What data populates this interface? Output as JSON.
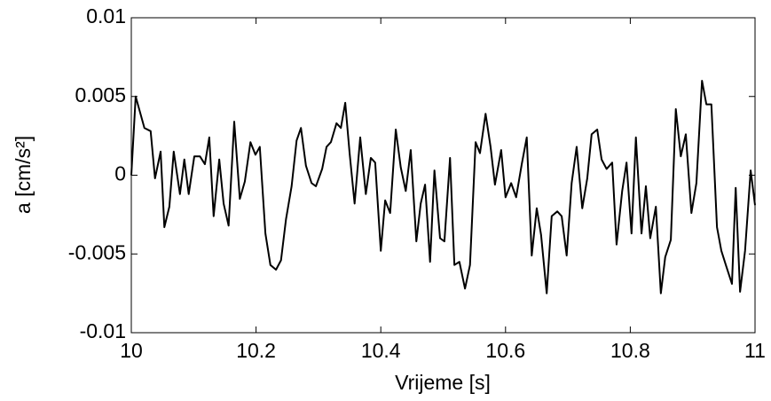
{
  "chart_data": {
    "type": "line",
    "xlabel": "Vrijeme [s]",
    "ylabel": "a [cm/s²]",
    "xlim": [
      10,
      11
    ],
    "xticks": [
      10,
      10.2,
      10.4,
      10.6,
      10.8,
      11
    ],
    "ylim": [
      -0.01,
      0.01
    ],
    "yticks": [
      -0.01,
      -0.005,
      0,
      0.005,
      0.01
    ],
    "grid": false,
    "series": [
      {
        "color": "#000000",
        "x": [
          10.0,
          10.007,
          10.021,
          10.031,
          10.038,
          10.047,
          10.053,
          10.061,
          10.068,
          10.078,
          10.085,
          10.092,
          10.101,
          10.11,
          10.118,
          10.125,
          10.132,
          10.141,
          10.148,
          10.156,
          10.165,
          10.174,
          10.182,
          10.191,
          10.199,
          10.206,
          10.215,
          10.223,
          10.232,
          10.24,
          10.248,
          10.257,
          10.265,
          10.272,
          10.28,
          10.289,
          10.296,
          10.306,
          10.313,
          10.32,
          10.329,
          10.336,
          10.343,
          10.35,
          10.358,
          10.367,
          10.376,
          10.384,
          10.391,
          10.4,
          10.407,
          10.415,
          10.424,
          10.432,
          10.44,
          10.448,
          10.457,
          10.464,
          10.471,
          10.479,
          10.486,
          10.495,
          10.502,
          10.511,
          10.518,
          10.526,
          10.535,
          10.543,
          10.552,
          10.559,
          10.568,
          10.576,
          10.583,
          10.593,
          10.6,
          10.609,
          10.617,
          10.626,
          10.634,
          10.642,
          10.65,
          10.657,
          10.666,
          10.674,
          10.683,
          10.69,
          10.698,
          10.706,
          10.714,
          10.723,
          10.731,
          10.738,
          10.747,
          10.754,
          10.762,
          10.771,
          10.778,
          10.787,
          10.794,
          10.802,
          10.809,
          10.818,
          10.825,
          10.832,
          10.841,
          10.849,
          10.856,
          10.865,
          10.873,
          10.881,
          10.889,
          10.898,
          10.906,
          10.915,
          10.922,
          10.93,
          10.939,
          10.946,
          10.954,
          10.963,
          10.969,
          10.976,
          10.984,
          10.993,
          11.0
        ],
        "values": [
          0,
          0.005,
          0.003,
          0.0028,
          -0.0002,
          0.0015,
          -0.0033,
          -0.002,
          0.0015,
          -0.0012,
          0.001,
          -0.0012,
          0.0012,
          0.0012,
          0.0007,
          0.0024,
          -0.0026,
          0.001,
          -0.0018,
          -0.0032,
          0.0034,
          -0.0015,
          -0.0004,
          0.0021,
          0.0013,
          0.0018,
          -0.0037,
          -0.0057,
          -0.006,
          -0.0054,
          -0.0028,
          -0.0007,
          0.0022,
          0.003,
          0.0006,
          -0.0005,
          -0.0007,
          0.0004,
          0.0018,
          0.0021,
          0.0033,
          0.003,
          0.0046,
          0.0014,
          -0.0018,
          0.0024,
          -0.0012,
          0.0011,
          0.0008,
          -0.0048,
          -0.0016,
          -0.0024,
          0.0029,
          0.0005,
          -0.001,
          0.0016,
          -0.0042,
          -0.0018,
          -0.0006,
          -0.0055,
          0.0003,
          -0.004,
          -0.0042,
          0.0011,
          -0.0057,
          -0.0055,
          -0.0072,
          -0.0057,
          0.0021,
          0.0014,
          0.0039,
          0.0018,
          -0.0006,
          0.0016,
          -0.0014,
          -0.0005,
          -0.0014,
          0.0007,
          0.0024,
          -0.0051,
          -0.0021,
          -0.0038,
          -0.0075,
          -0.0026,
          -0.0023,
          -0.0026,
          -0.0051,
          -0.0005,
          0.0018,
          -0.0021,
          -0.0002,
          0.0026,
          0.0029,
          0.001,
          0.0004,
          0.0008,
          -0.0044,
          -0.001,
          0.0008,
          -0.0037,
          0.0024,
          -0.0037,
          -0.0007,
          -0.004,
          -0.002,
          -0.0075,
          -0.0052,
          -0.0041,
          0.0042,
          0.0012,
          0.0026,
          -0.0024,
          -0.0005,
          0.006,
          0.0045,
          0.0045,
          -0.0033,
          -0.0048,
          -0.0058,
          -0.0069,
          -0.0008,
          -0.0074,
          -0.0048,
          0.0003,
          -0.0019
        ]
      }
    ]
  }
}
